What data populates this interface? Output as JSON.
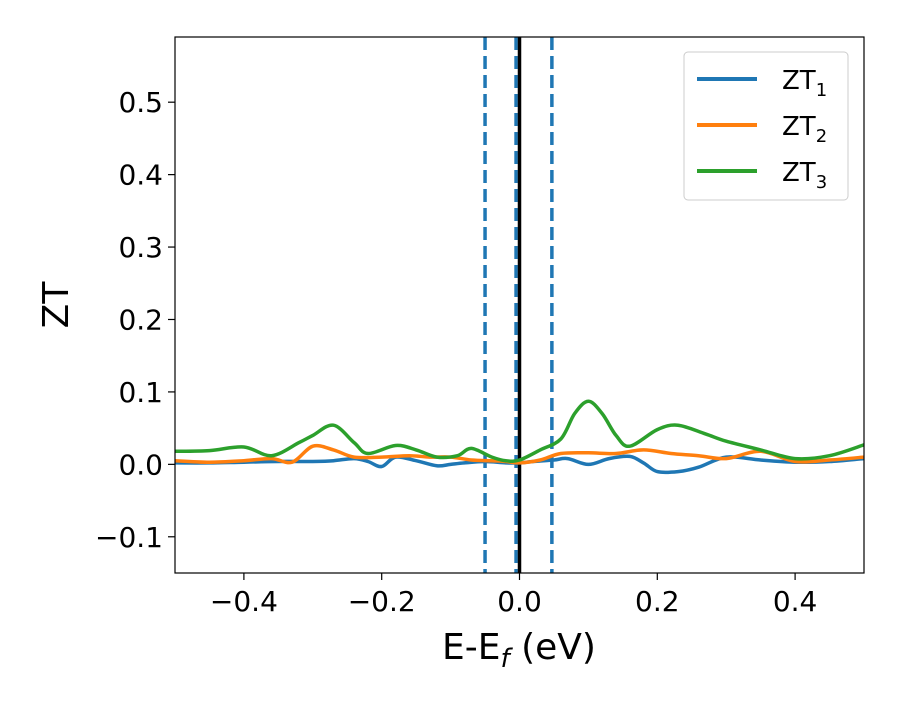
{
  "chart_data": {
    "type": "line",
    "xlabel": "E-E",
    "xlabel_sub": "f",
    "xlabel_unit": " (eV)",
    "ylabel": "ZT",
    "xlim": [
      -0.5,
      0.5
    ],
    "ylim": [
      -0.15,
      0.59
    ],
    "xticks": [
      -0.4,
      -0.2,
      0.0,
      0.2,
      0.4
    ],
    "xtick_labels": [
      "−0.4",
      "−0.2",
      "0.0",
      "0.2",
      "0.4"
    ],
    "yticks": [
      -0.1,
      0.0,
      0.1,
      0.2,
      0.3,
      0.4,
      0.5
    ],
    "ytick_labels": [
      "−0.1",
      "0.0",
      "0.1",
      "0.2",
      "0.3",
      "0.4",
      "0.5"
    ],
    "grid": false,
    "legend_position": "top-right",
    "vertical_lines": [
      {
        "x": -0.05,
        "style": "dashed",
        "color": "#1f77b4"
      },
      {
        "x": -0.005,
        "style": "dashed",
        "color": "#1f77b4"
      },
      {
        "x": 0.0,
        "style": "solid",
        "color": "#000000"
      },
      {
        "x": 0.047,
        "style": "dashed",
        "color": "#1f77b4"
      }
    ],
    "series": [
      {
        "name": "ZT",
        "sub": "1",
        "color": "#1f77b4",
        "x": [
          -0.5,
          -0.45,
          -0.4,
          -0.35,
          -0.3,
          -0.27,
          -0.24,
          -0.22,
          -0.2,
          -0.18,
          -0.15,
          -0.12,
          -0.1,
          -0.08,
          -0.05,
          -0.02,
          0.0,
          0.02,
          0.05,
          0.07,
          0.1,
          0.13,
          0.16,
          0.18,
          0.2,
          0.23,
          0.26,
          0.3,
          0.35,
          0.4,
          0.45,
          0.5
        ],
        "y": [
          0.002,
          0.002,
          0.003,
          0.004,
          0.004,
          0.005,
          0.008,
          0.004,
          -0.003,
          0.01,
          0.005,
          -0.002,
          0.0,
          0.002,
          0.004,
          0.002,
          0.002,
          0.004,
          0.006,
          0.008,
          0.0,
          0.008,
          0.011,
          0.002,
          -0.01,
          -0.01,
          -0.004,
          0.01,
          0.006,
          0.003,
          0.004,
          0.008
        ]
      },
      {
        "name": "ZT",
        "sub": "2",
        "color": "#ff7f0e",
        "x": [
          -0.5,
          -0.45,
          -0.4,
          -0.36,
          -0.33,
          -0.3,
          -0.27,
          -0.24,
          -0.2,
          -0.16,
          -0.13,
          -0.1,
          -0.07,
          -0.04,
          -0.02,
          0.0,
          0.03,
          0.06,
          0.1,
          0.14,
          0.18,
          0.22,
          0.26,
          0.3,
          0.35,
          0.4,
          0.45,
          0.5
        ],
        "y": [
          0.005,
          0.003,
          0.005,
          0.008,
          0.003,
          0.025,
          0.02,
          0.01,
          0.01,
          0.012,
          0.01,
          0.01,
          0.006,
          0.005,
          0.004,
          0.002,
          0.006,
          0.015,
          0.016,
          0.015,
          0.02,
          0.015,
          0.012,
          0.008,
          0.018,
          0.004,
          0.006,
          0.01
        ]
      },
      {
        "name": "ZT",
        "sub": "3",
        "color": "#2ca02c",
        "x": [
          -0.5,
          -0.45,
          -0.4,
          -0.36,
          -0.32,
          -0.3,
          -0.27,
          -0.24,
          -0.22,
          -0.18,
          -0.15,
          -0.12,
          -0.09,
          -0.07,
          -0.04,
          -0.02,
          0.0,
          0.03,
          0.06,
          0.08,
          0.1,
          0.12,
          0.14,
          0.16,
          0.2,
          0.23,
          0.27,
          0.3,
          0.35,
          0.4,
          0.45,
          0.5
        ],
        "y": [
          0.018,
          0.019,
          0.024,
          0.012,
          0.03,
          0.04,
          0.054,
          0.03,
          0.015,
          0.026,
          0.02,
          0.01,
          0.012,
          0.022,
          0.01,
          0.005,
          0.006,
          0.02,
          0.035,
          0.07,
          0.087,
          0.07,
          0.04,
          0.025,
          0.048,
          0.054,
          0.042,
          0.032,
          0.02,
          0.008,
          0.012,
          0.027
        ]
      }
    ]
  }
}
